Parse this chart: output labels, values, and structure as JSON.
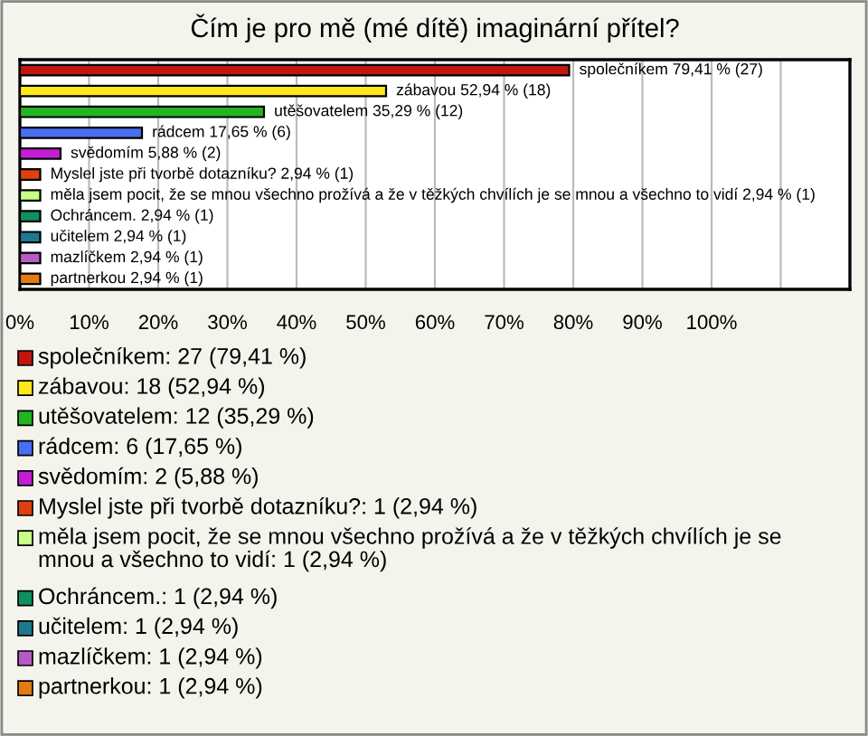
{
  "chart_data": {
    "type": "bar",
    "orientation": "horizontal",
    "title": "Čím je pro mě (mé dítě) imaginární přítel?",
    "categories": [
      null,
      null,
      null,
      null,
      null,
      null,
      null,
      null,
      null,
      null,
      null
    ],
    "values": [
      79.41,
      52.94,
      35.29,
      17.65,
      5.88,
      2.94,
      2.94,
      2.94,
      2.94,
      2.94,
      2.94
    ],
    "colors": [
      "#c0160e",
      "#ffe81a",
      "#22b422",
      "#4a6ef0",
      "#c41ed4",
      "#e0400e",
      "#c8ff86",
      "#109060",
      "#1e7890",
      "#b45cc4",
      "#e47a14"
    ],
    "value_labels": [
      "společníkem 79,41 % (27)",
      "zábavou 52,94 % (18)",
      "utěšovatelem 35,29 % (12)",
      "rádcem 17,65 % (6)",
      "svědomím 5,88 % (2)",
      "Myslel jste při tvorbě dotazníku? 2,94 % (1)",
      "měla jsem pocit, že se mnou všechno prožívá a že v těžkých chvílích je se mnou a všechno to vidí 2,94 % (1)",
      "Ochráncem. 2,94 % (1)",
      "učitelem 2,94 % (1)",
      "mazlíčkem 2,94 % (1)",
      "partnerkou 2,94 % (1)"
    ],
    "xlim": [
      0,
      120
    ],
    "xticks": [
      {
        "value": 0,
        "label": "0%"
      },
      {
        "value": 10,
        "label": "10%"
      },
      {
        "value": 20,
        "label": "20%"
      },
      {
        "value": 30,
        "label": "30%"
      },
      {
        "value": 40,
        "label": "40%"
      },
      {
        "value": 50,
        "label": "50%"
      },
      {
        "value": 60,
        "label": "60%"
      },
      {
        "value": 70,
        "label": "70%"
      },
      {
        "value": 80,
        "label": "80%"
      },
      {
        "value": 90,
        "label": "90%"
      },
      {
        "value": 100,
        "label": "100%"
      },
      {
        "value": 110,
        "label": null
      }
    ],
    "grid": "x",
    "annotations": [
      "společníkem: 27 (79,41 %)",
      "zábavou: 18 (52,94 %)",
      "utěšovatelem: 12 (35,29 %)",
      "rádcem: 6 (17,65 %)",
      "svědomím: 2 (5,88 %)",
      "Myslel jste při tvorbě dotazníku?: 1 (2,94 %)",
      "měla jsem pocit, že se mnou všechno prožívá a že v těžkých chvílích je se mnou a všechno to vidí: 1 (2,94 %)",
      "Ochráncem.: 1 (2,94 %)",
      "učitelem: 1 (2,94 %)",
      "mazlíčkem: 1 (2,94 %)",
      "partnerkou: 1 (2,94 %)"
    ]
  }
}
